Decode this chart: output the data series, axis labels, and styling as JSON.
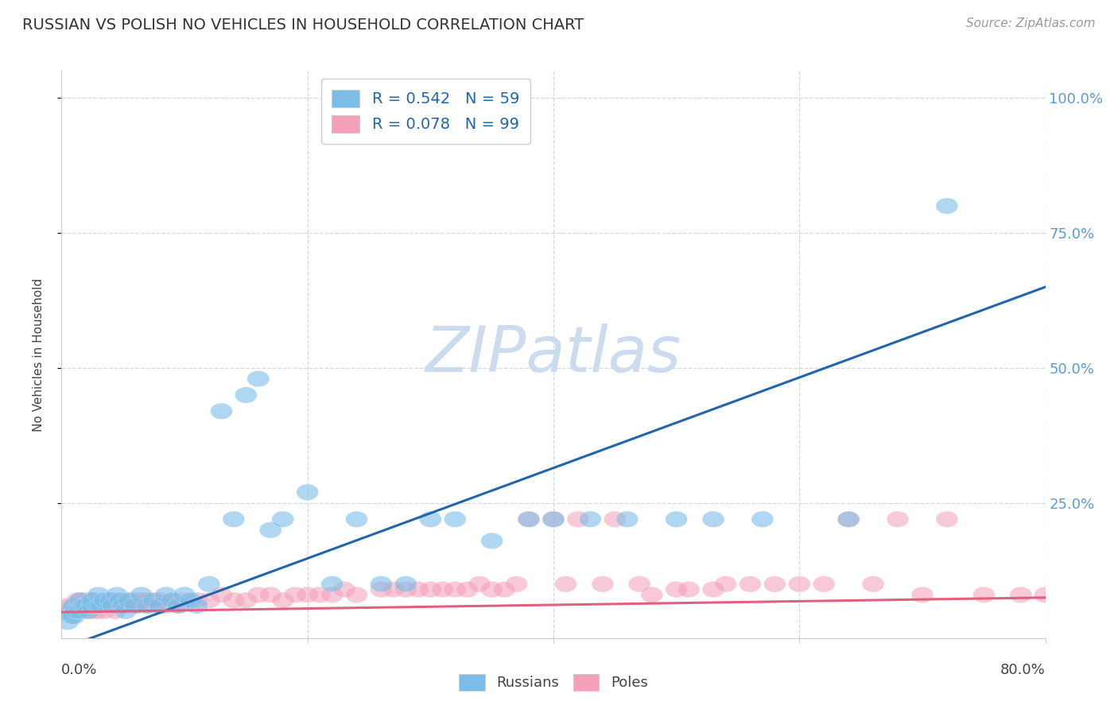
{
  "title": "RUSSIAN VS POLISH NO VEHICLES IN HOUSEHOLD CORRELATION CHART",
  "source": "Source: ZipAtlas.com",
  "ylabel": "No Vehicles in Household",
  "xlim": [
    0.0,
    0.8
  ],
  "ylim": [
    0.0,
    1.05
  ],
  "russian_color": "#7bbde8",
  "polish_color": "#f4a0b8",
  "russian_line_color": "#2166ac",
  "polish_line_color": "#e06080",
  "background_color": "#ffffff",
  "watermark": "ZIPatlas",
  "watermark_color": "#ccdcee",
  "legend_russian_label": "R = 0.542   N = 59",
  "legend_polish_label": "R = 0.078   N = 99",
  "russians_label": "Russians",
  "poles_label": "Poles",
  "russian_line_x0": 0.0,
  "russian_line_y0": -0.02,
  "russian_line_x1": 0.8,
  "russian_line_y1": 0.65,
  "polish_line_x0": 0.0,
  "polish_line_y0": 0.048,
  "polish_line_x1": 0.8,
  "polish_line_y1": 0.075,
  "russian_x": [
    0.005,
    0.007,
    0.008,
    0.01,
    0.01,
    0.012,
    0.015,
    0.015,
    0.018,
    0.02,
    0.022,
    0.025,
    0.025,
    0.03,
    0.03,
    0.032,
    0.035,
    0.04,
    0.042,
    0.045,
    0.048,
    0.05,
    0.052,
    0.055,
    0.06,
    0.065,
    0.07,
    0.075,
    0.08,
    0.085,
    0.09,
    0.095,
    0.1,
    0.105,
    0.11,
    0.12,
    0.13,
    0.14,
    0.15,
    0.16,
    0.17,
    0.18,
    0.2,
    0.22,
    0.24,
    0.26,
    0.28,
    0.3,
    0.32,
    0.35,
    0.38,
    0.4,
    0.43,
    0.46,
    0.5,
    0.53,
    0.57,
    0.64,
    0.72
  ],
  "russian_y": [
    0.03,
    0.05,
    0.04,
    0.06,
    0.04,
    0.05,
    0.05,
    0.07,
    0.06,
    0.06,
    0.05,
    0.06,
    0.07,
    0.06,
    0.08,
    0.06,
    0.07,
    0.07,
    0.06,
    0.08,
    0.07,
    0.06,
    0.05,
    0.07,
    0.06,
    0.08,
    0.06,
    0.07,
    0.06,
    0.08,
    0.07,
    0.06,
    0.08,
    0.07,
    0.06,
    0.1,
    0.42,
    0.22,
    0.45,
    0.48,
    0.2,
    0.22,
    0.27,
    0.1,
    0.22,
    0.1,
    0.1,
    0.22,
    0.22,
    0.18,
    0.22,
    0.22,
    0.22,
    0.22,
    0.22,
    0.22,
    0.22,
    0.22,
    0.8
  ],
  "polish_x": [
    0.003,
    0.005,
    0.007,
    0.008,
    0.01,
    0.01,
    0.012,
    0.013,
    0.015,
    0.015,
    0.016,
    0.018,
    0.019,
    0.02,
    0.02,
    0.022,
    0.023,
    0.025,
    0.025,
    0.027,
    0.028,
    0.03,
    0.03,
    0.032,
    0.033,
    0.035,
    0.037,
    0.038,
    0.04,
    0.042,
    0.044,
    0.045,
    0.047,
    0.048,
    0.05,
    0.052,
    0.055,
    0.058,
    0.06,
    0.062,
    0.065,
    0.068,
    0.07,
    0.075,
    0.08,
    0.085,
    0.09,
    0.095,
    0.1,
    0.11,
    0.12,
    0.13,
    0.14,
    0.15,
    0.16,
    0.17,
    0.18,
    0.19,
    0.2,
    0.21,
    0.22,
    0.23,
    0.24,
    0.26,
    0.28,
    0.3,
    0.32,
    0.35,
    0.38,
    0.4,
    0.42,
    0.45,
    0.48,
    0.5,
    0.53,
    0.56,
    0.6,
    0.64,
    0.68,
    0.72,
    0.75,
    0.78,
    0.8,
    0.31,
    0.34,
    0.37,
    0.41,
    0.44,
    0.47,
    0.51,
    0.54,
    0.58,
    0.62,
    0.66,
    0.7,
    0.27,
    0.29,
    0.33,
    0.36
  ],
  "polish_y": [
    0.05,
    0.06,
    0.05,
    0.06,
    0.05,
    0.06,
    0.05,
    0.07,
    0.06,
    0.07,
    0.05,
    0.06,
    0.05,
    0.07,
    0.06,
    0.05,
    0.06,
    0.06,
    0.07,
    0.05,
    0.06,
    0.05,
    0.06,
    0.07,
    0.06,
    0.05,
    0.06,
    0.06,
    0.07,
    0.06,
    0.05,
    0.06,
    0.07,
    0.06,
    0.06,
    0.07,
    0.06,
    0.06,
    0.07,
    0.06,
    0.07,
    0.06,
    0.07,
    0.06,
    0.07,
    0.06,
    0.07,
    0.06,
    0.07,
    0.07,
    0.07,
    0.08,
    0.07,
    0.07,
    0.08,
    0.08,
    0.07,
    0.08,
    0.08,
    0.08,
    0.08,
    0.09,
    0.08,
    0.09,
    0.09,
    0.09,
    0.09,
    0.09,
    0.22,
    0.22,
    0.22,
    0.22,
    0.08,
    0.09,
    0.09,
    0.1,
    0.1,
    0.22,
    0.22,
    0.22,
    0.08,
    0.08,
    0.08,
    0.09,
    0.1,
    0.1,
    0.1,
    0.1,
    0.1,
    0.09,
    0.1,
    0.1,
    0.1,
    0.1,
    0.08,
    0.09,
    0.09,
    0.09,
    0.09
  ],
  "grid_color": "#c8d4e0",
  "grid_yticks": [
    0.25,
    0.5,
    0.75,
    1.0
  ],
  "grid_xticks": [
    0.2,
    0.4,
    0.6,
    0.8
  ],
  "ytick_labels_right": [
    "25.0%",
    "50.0%",
    "75.0%",
    "100.0%"
  ],
  "title_fontsize": 14,
  "source_fontsize": 11,
  "tick_label_fontsize": 13,
  "ylabel_fontsize": 11
}
